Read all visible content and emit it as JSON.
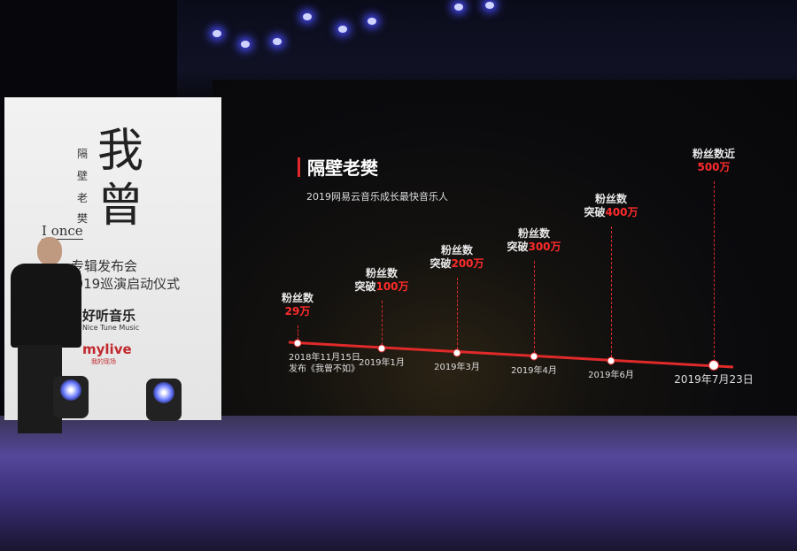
{
  "banner": {
    "artist_vertical": [
      "隔",
      "壁",
      "老",
      "樊"
    ],
    "english_title": "I once",
    "album_title": "我曾",
    "event_line1": "专辑发布会",
    "event_line2": "2019巡演启动仪式",
    "sponsor1": "好听音乐",
    "sponsor1_en": "Nice Tune Music",
    "sponsor2": "mylive",
    "sponsor2_sub": "我的现场"
  },
  "slide": {
    "title": "隔壁老樊",
    "subtitle": "2019网易云音乐成长最快音乐人",
    "accent_color": "#e02a2a",
    "milestones": [
      {
        "line1": "粉丝数",
        "prefix": "",
        "value": "29万",
        "date": "2018年11月15日",
        "date2": "发布《我曾不如》"
      },
      {
        "line1": "粉丝数",
        "prefix": "突破",
        "value": "100万",
        "date": "2019年1月"
      },
      {
        "line1": "粉丝数",
        "prefix": "突破",
        "value": "200万",
        "date": "2019年3月"
      },
      {
        "line1": "粉丝数",
        "prefix": "突破",
        "value": "300万",
        "date": "2019年4月"
      },
      {
        "line1": "粉丝数",
        "prefix": "突破",
        "value": "400万",
        "date": "2019年6月"
      },
      {
        "line1": "粉丝数近",
        "prefix": "",
        "value": "500万",
        "date": "2019年7月23日"
      }
    ]
  }
}
